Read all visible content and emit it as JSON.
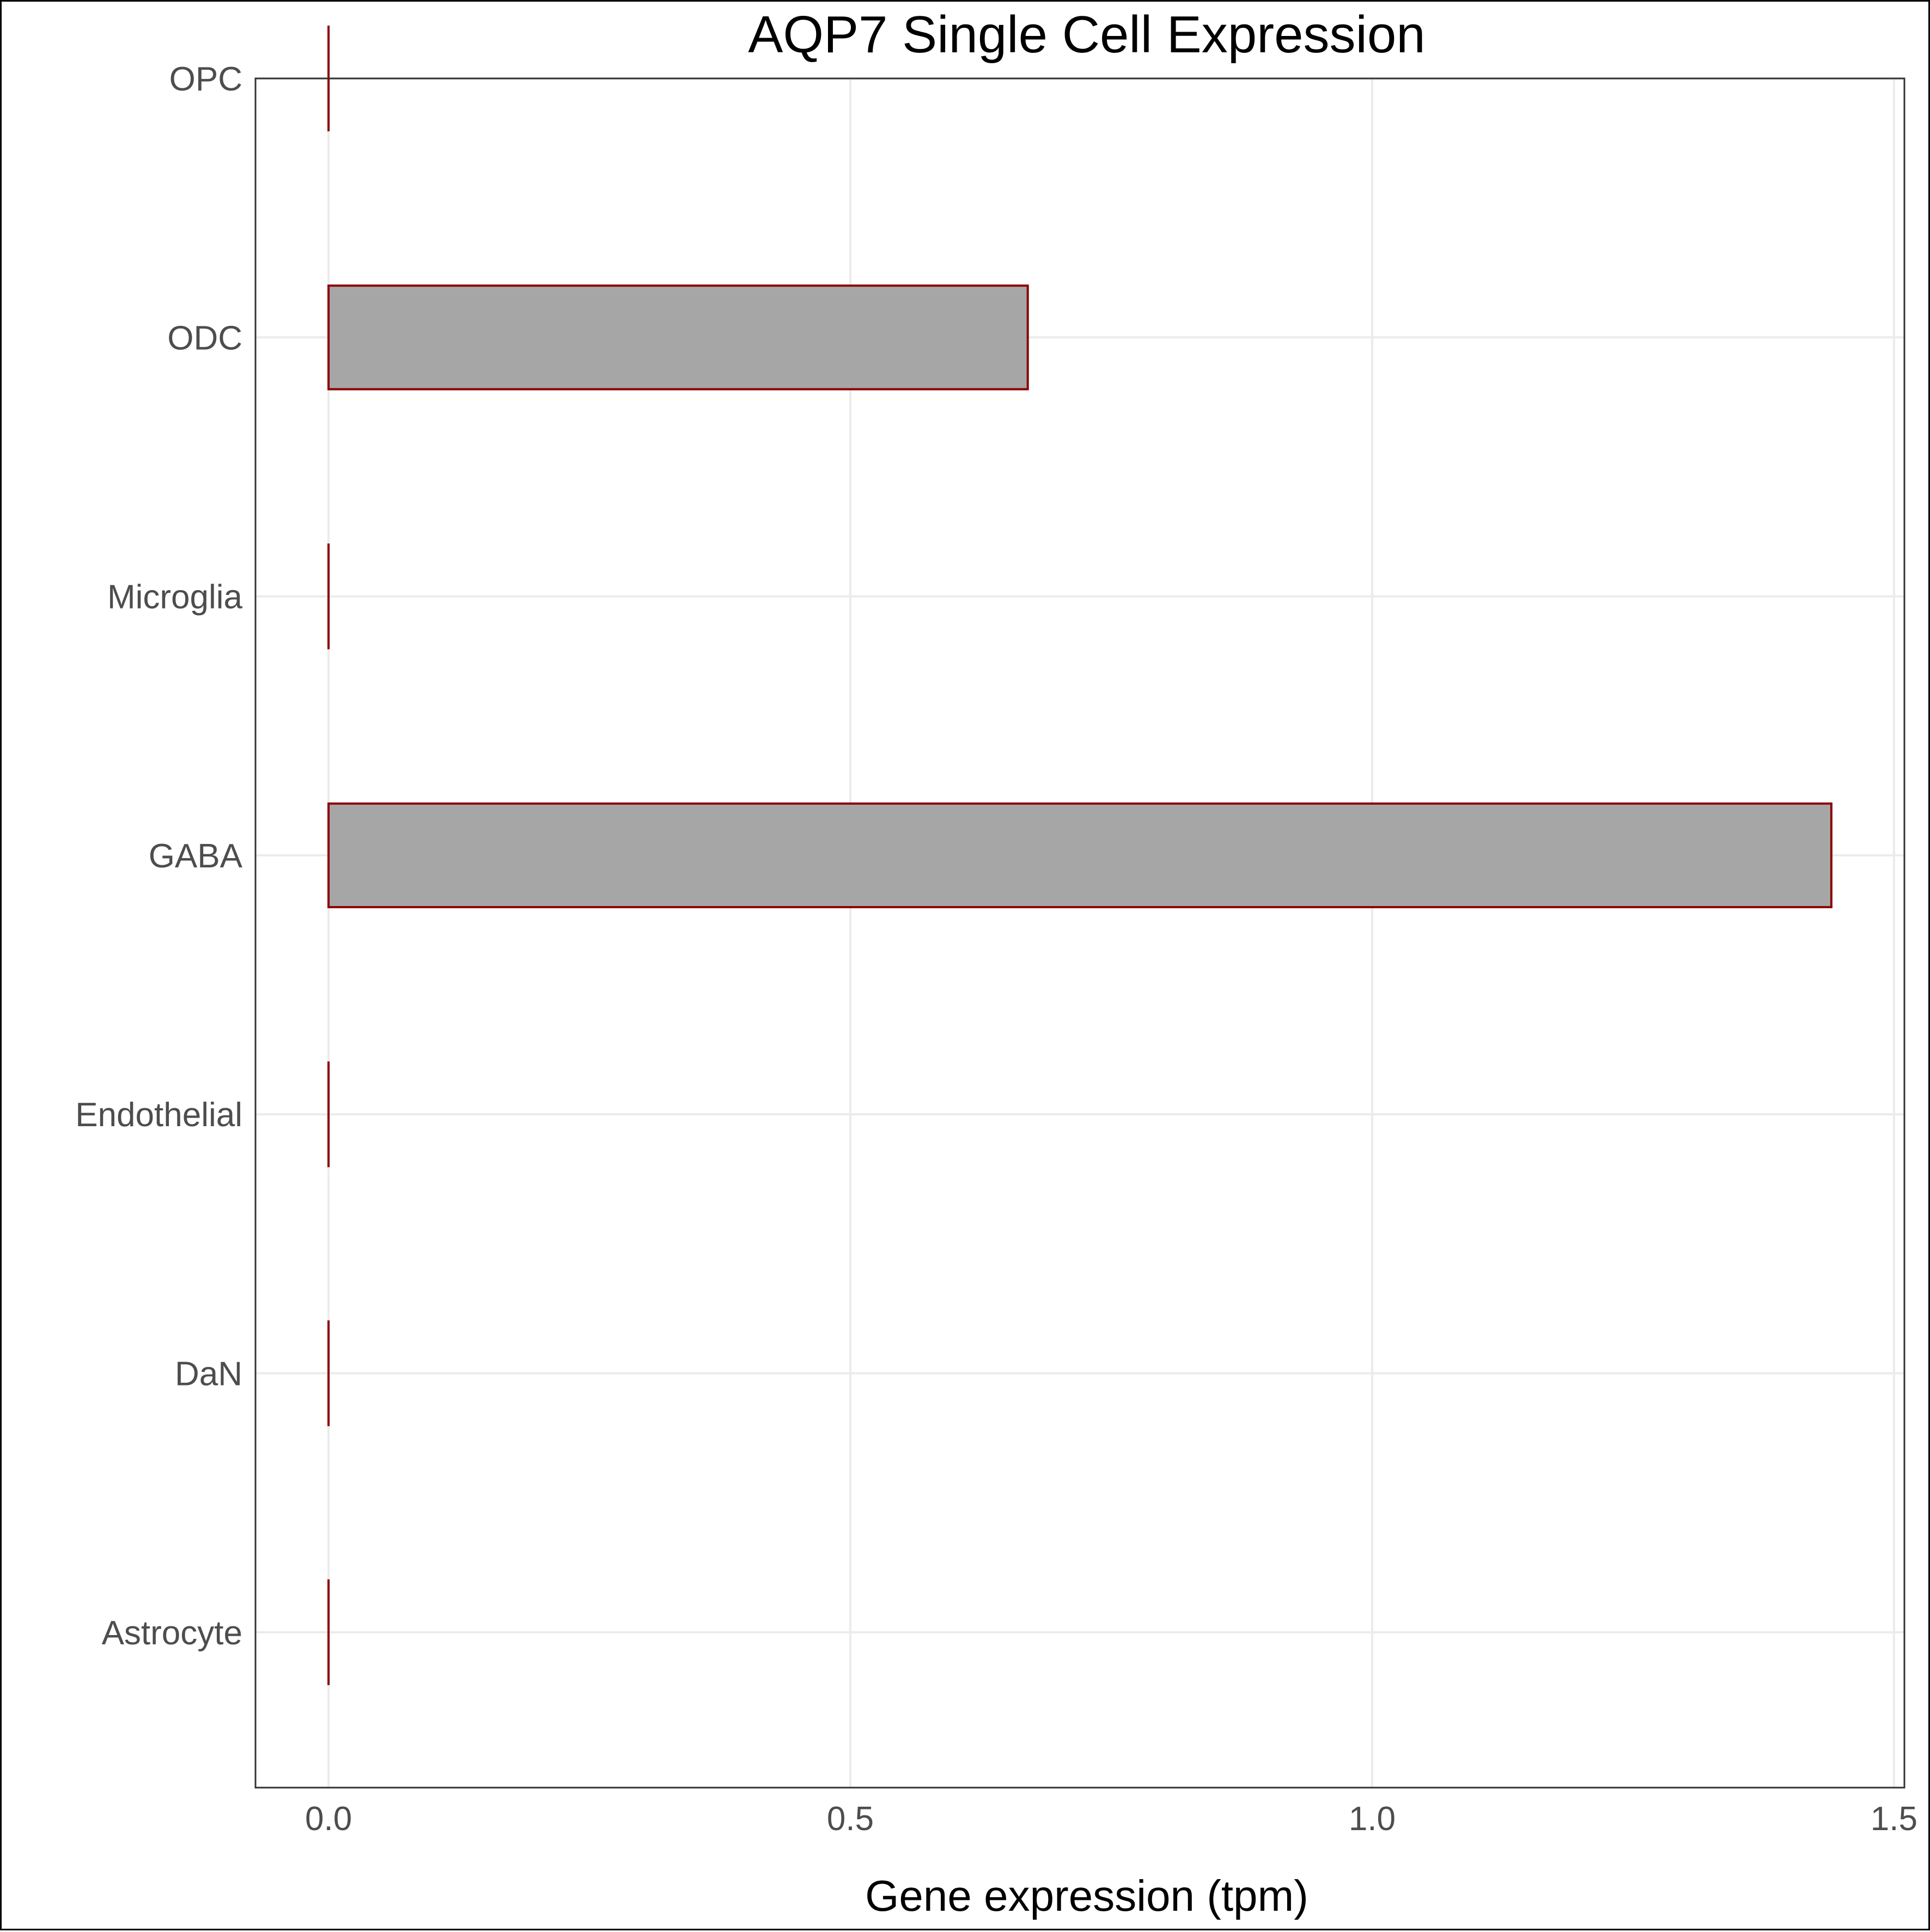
{
  "chart_data": {
    "type": "bar",
    "orientation": "horizontal",
    "title": "AQP7 Single Cell Expression",
    "xlabel": "Gene expression (tpm)",
    "ylabel": "",
    "categories": [
      "Astrocyte",
      "DaN",
      "Endothelial",
      "GABA",
      "Microglia",
      "ODC",
      "OPC"
    ],
    "values": [
      0,
      0,
      0,
      1.44,
      0,
      0.67,
      0
    ],
    "xlim": [
      -0.07,
      1.51
    ],
    "xticks": [
      0.0,
      0.5,
      1.0,
      1.5
    ],
    "xtick_labels": [
      "0.0",
      "0.5",
      "1.0",
      "1.5"
    ],
    "grid": true,
    "legend": "none",
    "colors": {
      "bar_fill": "#a6a6a6",
      "bar_stroke": "#8b0000",
      "grid": "#ebebeb",
      "panel_border": "#333333"
    }
  }
}
